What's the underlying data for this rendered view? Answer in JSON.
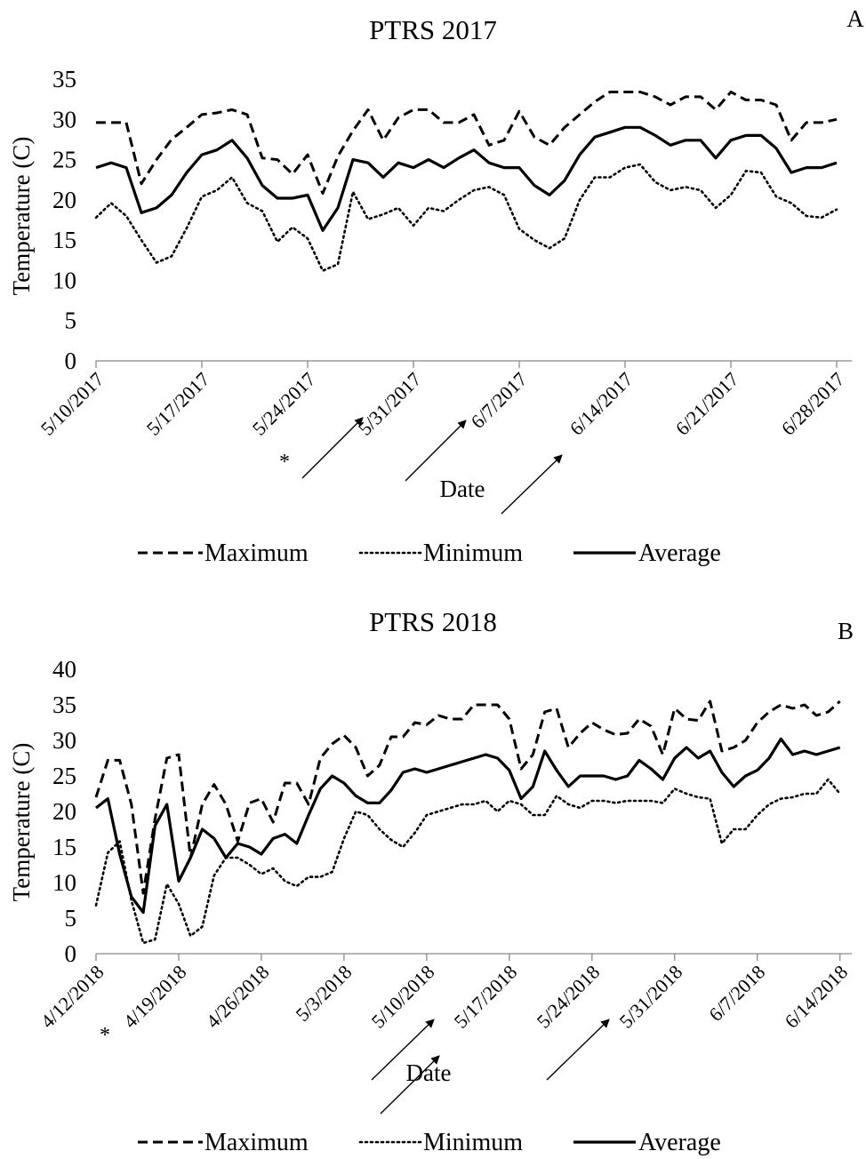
{
  "chart_data": [
    {
      "type": "line",
      "panel": "A",
      "title": "PTRS 2017",
      "xlabel": "Date",
      "ylabel": "Temperature (C)",
      "ylim": [
        0,
        35
      ],
      "yticks": [
        0,
        5,
        10,
        15,
        20,
        25,
        30,
        35
      ],
      "xlim_days": [
        0,
        50
      ],
      "xticks": [
        "5/10/2017",
        "5/17/2017",
        "5/24/2017",
        "5/31/2017",
        "6/7/2017",
        "6/14/2017",
        "6/21/2017",
        "6/28/2017"
      ],
      "x": [
        "5/10/2017",
        "5/11/2017",
        "5/12/2017",
        "5/13/2017",
        "5/14/2017",
        "5/15/2017",
        "5/16/2017",
        "5/17/2017",
        "5/18/2017",
        "5/19/2017",
        "5/20/2017",
        "5/21/2017",
        "5/22/2017",
        "5/23/2017",
        "5/24/2017",
        "5/25/2017",
        "5/26/2017",
        "5/27/2017",
        "5/28/2017",
        "5/29/2017",
        "5/30/2017",
        "5/31/2017",
        "6/1/2017",
        "6/2/2017",
        "6/3/2017",
        "6/4/2017",
        "6/5/2017",
        "6/6/2017",
        "6/7/2017",
        "6/8/2017",
        "6/9/2017",
        "6/10/2017",
        "6/11/2017",
        "6/12/2017",
        "6/13/2017",
        "6/14/2017",
        "6/15/2017",
        "6/16/2017",
        "6/17/2017",
        "6/18/2017",
        "6/19/2017",
        "6/20/2017",
        "6/21/2017",
        "6/22/2017",
        "6/23/2017",
        "6/24/2017",
        "6/25/2017",
        "6/26/2017",
        "6/27/2017",
        "6/28/2017"
      ],
      "series": [
        {
          "name": "Maximum",
          "style": "dashed",
          "values": [
            29.6,
            29.6,
            29.6,
            22.0,
            25.0,
            27.5,
            29.0,
            30.6,
            30.8,
            31.2,
            30.6,
            25.2,
            25.0,
            23.2,
            25.6,
            20.8,
            25.4,
            28.6,
            31.2,
            27.4,
            30.2,
            31.2,
            31.2,
            29.6,
            29.6,
            30.6,
            26.8,
            27.4,
            31.0,
            27.8,
            26.8,
            29.0,
            30.6,
            32.2,
            33.4,
            33.4,
            33.4,
            32.8,
            31.8,
            32.8,
            32.8,
            31.2,
            33.4,
            32.4,
            32.4,
            31.8,
            27.4,
            29.6,
            29.6,
            30.0
          ]
        },
        {
          "name": "Minimum",
          "style": "dotted",
          "values": [
            17.8,
            19.6,
            18.0,
            15.0,
            12.2,
            13.0,
            16.5,
            20.4,
            21.2,
            22.8,
            19.6,
            18.6,
            14.8,
            16.6,
            15.2,
            11.2,
            12.0,
            21.0,
            17.6,
            18.2,
            19.0,
            16.8,
            19.0,
            18.6,
            20.0,
            21.2,
            21.6,
            20.6,
            16.4,
            15.0,
            14.0,
            15.2,
            20.0,
            22.8,
            22.8,
            24.0,
            24.4,
            22.2,
            21.2,
            21.6,
            21.2,
            19.0,
            20.6,
            23.6,
            23.4,
            20.4,
            19.6,
            18.0,
            17.8,
            18.8
          ]
        },
        {
          "name": "Average",
          "style": "solid",
          "values": [
            24.0,
            24.6,
            24.0,
            18.4,
            19.0,
            20.6,
            23.4,
            25.6,
            26.2,
            27.4,
            25.2,
            21.8,
            20.2,
            20.2,
            20.6,
            16.2,
            19.0,
            25.0,
            24.6,
            22.8,
            24.6,
            24.0,
            25.0,
            24.0,
            25.2,
            26.2,
            24.6,
            24.0,
            24.0,
            21.8,
            20.6,
            22.4,
            25.6,
            27.8,
            28.4,
            29.0,
            29.0,
            28.0,
            26.8,
            27.4,
            27.4,
            25.2,
            27.4,
            28.0,
            28.0,
            26.4,
            23.4,
            24.0,
            24.0,
            24.6
          ]
        }
      ],
      "legend": [
        "Maximum",
        "Minimum",
        "Average"
      ],
      "legend_position": "bottom",
      "annotations": {
        "asterisk": "*"
      }
    },
    {
      "type": "line",
      "panel": "B",
      "title": "PTRS 2018",
      "xlabel": "Date",
      "ylabel": "Temperature (C)",
      "ylim": [
        0,
        40
      ],
      "yticks": [
        0,
        5,
        10,
        15,
        20,
        25,
        30,
        35,
        40
      ],
      "xlim_days": [
        0,
        64
      ],
      "xticks": [
        "4/12/2018",
        "4/19/2018",
        "4/26/2018",
        "5/3/2018",
        "5/10/2018",
        "5/17/2018",
        "5/24/2018",
        "5/31/2018",
        "6/7/2018",
        "6/14/2018"
      ],
      "x": [
        "4/12/2018",
        "4/13/2018",
        "4/14/2018",
        "4/15/2018",
        "4/16/2018",
        "4/17/2018",
        "4/18/2018",
        "4/19/2018",
        "4/20/2018",
        "4/21/2018",
        "4/22/2018",
        "4/23/2018",
        "4/24/2018",
        "4/25/2018",
        "4/26/2018",
        "4/27/2018",
        "4/28/2018",
        "4/29/2018",
        "4/30/2018",
        "5/1/2018",
        "5/2/2018",
        "5/3/2018",
        "5/4/2018",
        "5/5/2018",
        "5/6/2018",
        "5/7/2018",
        "5/8/2018",
        "5/9/2018",
        "5/10/2018",
        "5/11/2018",
        "5/12/2018",
        "5/13/2018",
        "5/14/2018",
        "5/15/2018",
        "5/16/2018",
        "5/17/2018",
        "5/18/2018",
        "5/19/2018",
        "5/20/2018",
        "5/21/2018",
        "5/22/2018",
        "5/23/2018",
        "5/24/2018",
        "5/25/2018",
        "5/26/2018",
        "5/27/2018",
        "5/28/2018",
        "5/29/2018",
        "5/30/2018",
        "5/31/2018",
        "6/1/2018",
        "6/2/2018",
        "6/3/2018",
        "6/4/2018",
        "6/5/2018",
        "6/6/2018",
        "6/7/2018",
        "6/8/2018",
        "6/9/2018",
        "6/10/2018",
        "6/11/2018",
        "6/12/2018",
        "6/13/2018",
        "6/14/2018"
      ],
      "series": [
        {
          "name": "Maximum",
          "style": "dashed",
          "values": [
            22.0,
            27.2,
            27.2,
            21.0,
            8.5,
            19.0,
            27.5,
            28.0,
            13.5,
            21.0,
            23.8,
            21.0,
            15.8,
            21.2,
            21.8,
            18.5,
            24.0,
            24.0,
            21.0,
            27.5,
            29.5,
            30.7,
            29.0,
            25.0,
            26.5,
            30.5,
            30.5,
            32.5,
            32.2,
            33.5,
            33.0,
            33.0,
            35.0,
            35.0,
            35.0,
            33.0,
            26.0,
            28.0,
            34.0,
            34.5,
            29.0,
            31.0,
            32.5,
            31.5,
            30.8,
            31.0,
            33.0,
            32.0,
            28.0,
            34.5,
            33.0,
            32.8,
            35.5,
            28.5,
            29.0,
            30.0,
            32.5,
            34.0,
            35.0,
            34.5,
            35.0,
            33.5,
            34.0,
            35.5
          ]
        },
        {
          "name": "Minimum",
          "style": "dotted",
          "values": [
            6.8,
            14.2,
            15.8,
            7.5,
            1.5,
            2.0,
            9.8,
            7.0,
            2.5,
            3.8,
            11.0,
            13.5,
            13.5,
            12.5,
            11.2,
            12.0,
            10.2,
            9.5,
            10.8,
            10.8,
            11.5,
            16.2,
            20.0,
            19.5,
            17.5,
            16.0,
            15.0,
            17.0,
            19.5,
            20.0,
            20.5,
            21.0,
            21.0,
            21.5,
            20.0,
            21.5,
            21.0,
            19.5,
            19.5,
            22.2,
            21.0,
            20.5,
            21.5,
            21.5,
            21.2,
            21.5,
            21.5,
            21.5,
            21.2,
            23.2,
            22.5,
            22.0,
            21.8,
            15.5,
            17.5,
            17.5,
            19.5,
            21.0,
            21.8,
            22.0,
            22.5,
            22.5,
            24.5,
            22.5
          ]
        },
        {
          "name": "Average",
          "style": "solid",
          "values": [
            20.5,
            21.8,
            14.0,
            8.0,
            5.8,
            18.0,
            21.0,
            10.2,
            13.5,
            17.5,
            16.2,
            13.5,
            15.5,
            15.0,
            14.0,
            16.2,
            16.8,
            15.5,
            19.5,
            23.2,
            25.0,
            24.0,
            22.2,
            21.2,
            21.2,
            23.0,
            25.5,
            26.0,
            25.5,
            26.0,
            26.5,
            27.0,
            27.5,
            28.0,
            27.5,
            25.8,
            21.8,
            23.5,
            28.5,
            25.8,
            23.5,
            25.0,
            25.0,
            25.0,
            24.5,
            25.0,
            27.2,
            26.0,
            24.5,
            27.5,
            29.0,
            27.5,
            28.5,
            25.5,
            23.5,
            25.0,
            25.8,
            27.5,
            30.2,
            28.0,
            28.5,
            28.0,
            28.5,
            29.0
          ]
        }
      ],
      "legend": [
        "Maximum",
        "Minimum",
        "Average"
      ],
      "legend_position": "bottom",
      "annotations": {
        "asterisk": "*"
      }
    }
  ]
}
